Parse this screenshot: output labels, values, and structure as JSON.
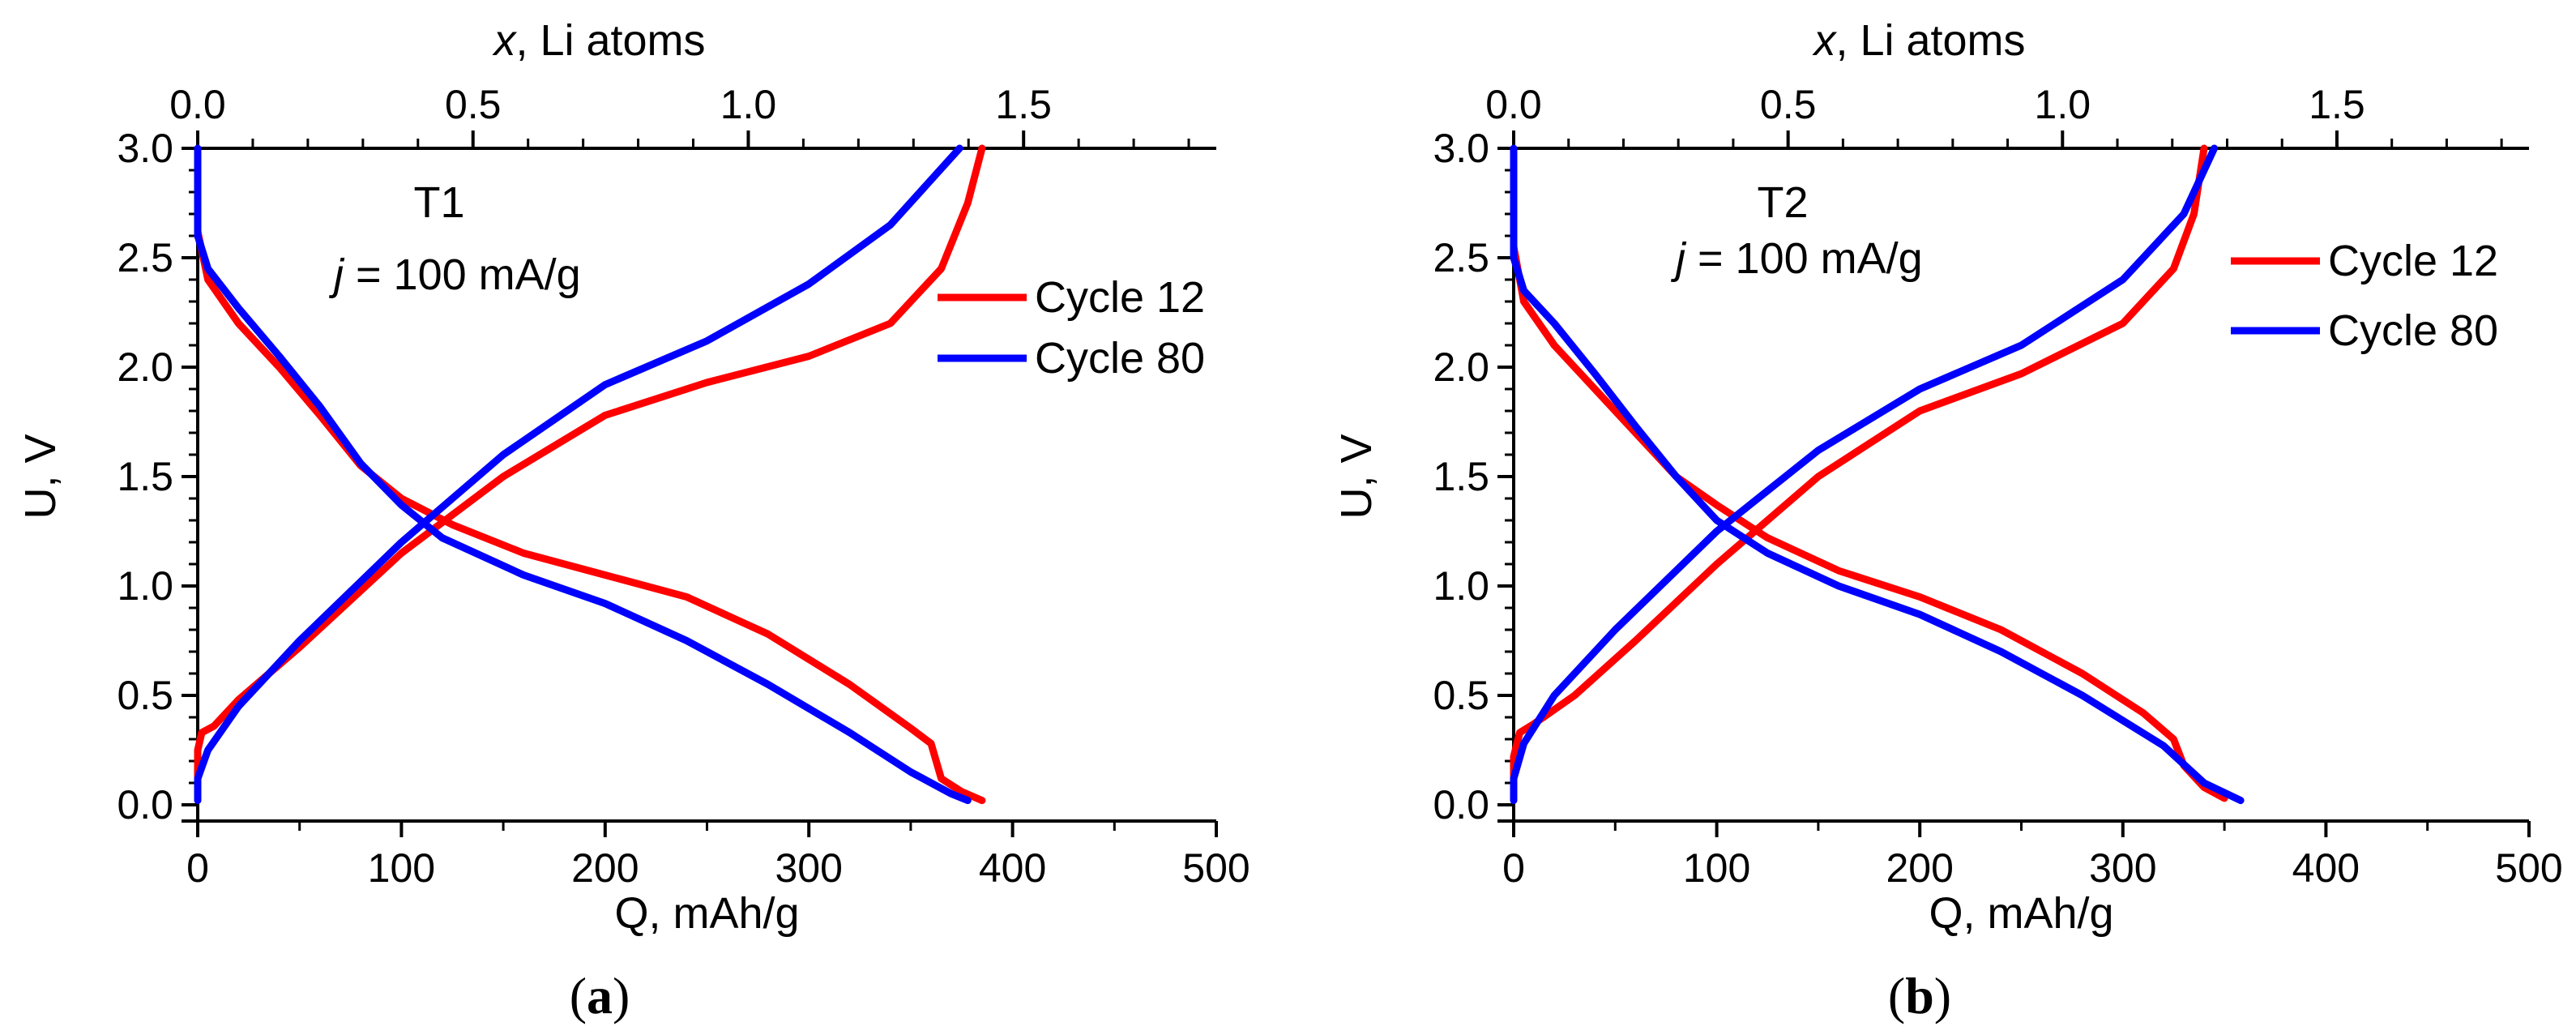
{
  "chart_data": [
    {
      "type": "line",
      "panel_label": "a",
      "annotation": "T1",
      "current_density": {
        "italic": "j",
        "text": " = 100 mA/g"
      },
      "xlabel": "Q, mAh/g",
      "ylabel": "U, V",
      "top_xlabel": {
        "italic": "x",
        "text": ", Li atoms"
      },
      "xlim": [
        0,
        500
      ],
      "ylim": [
        0,
        3.0
      ],
      "top_xlim": [
        0,
        1.85
      ],
      "xticks": [
        "0",
        "100",
        "200",
        "300",
        "400",
        "500"
      ],
      "yticks": [
        "0.0",
        "0.5",
        "1.0",
        "1.5",
        "2.0",
        "2.5",
        "3.0"
      ],
      "top_xticks": [
        "0.0",
        "0.5",
        "1.0",
        "1.5"
      ],
      "legend_position": "right",
      "series": [
        {
          "name": "Cycle 12",
          "color": "#ff0000",
          "segments": [
            [
              [
                0,
                2.62
              ],
              [
                5,
                2.4
              ],
              [
                20,
                2.2
              ],
              [
                40,
                2.0
              ],
              [
                60,
                1.78
              ],
              [
                80,
                1.55
              ],
              [
                100,
                1.4
              ],
              [
                125,
                1.28
              ],
              [
                160,
                1.15
              ],
              [
                200,
                1.05
              ],
              [
                240,
                0.95
              ],
              [
                280,
                0.78
              ],
              [
                320,
                0.55
              ],
              [
                350,
                0.35
              ],
              [
                360,
                0.28
              ],
              [
                365,
                0.12
              ],
              [
                375,
                0.06
              ],
              [
                385,
                0.02
              ]
            ],
            [
              [
                0,
                0.1
              ],
              [
                0,
                0.25
              ],
              [
                2,
                0.33
              ],
              [
                8,
                0.36
              ],
              [
                20,
                0.48
              ],
              [
                50,
                0.72
              ],
              [
                100,
                1.15
              ],
              [
                150,
                1.5
              ],
              [
                200,
                1.78
              ],
              [
                250,
                1.93
              ],
              [
                300,
                2.05
              ],
              [
                340,
                2.2
              ],
              [
                365,
                2.45
              ],
              [
                378,
                2.75
              ],
              [
                385,
                3.0
              ]
            ]
          ]
        },
        {
          "name": "Cycle 80",
          "color": "#0000ff",
          "segments": [
            [
              [
                0,
                3.0
              ],
              [
                0,
                2.6
              ],
              [
                5,
                2.45
              ],
              [
                20,
                2.27
              ],
              [
                40,
                2.05
              ],
              [
                60,
                1.82
              ],
              [
                80,
                1.56
              ],
              [
                100,
                1.37
              ],
              [
                120,
                1.22
              ],
              [
                160,
                1.05
              ],
              [
                200,
                0.92
              ],
              [
                240,
                0.75
              ],
              [
                280,
                0.55
              ],
              [
                320,
                0.33
              ],
              [
                350,
                0.15
              ],
              [
                370,
                0.05
              ],
              [
                378,
                0.02
              ]
            ],
            [
              [
                0,
                0.02
              ],
              [
                0,
                0.12
              ],
              [
                5,
                0.25
              ],
              [
                20,
                0.45
              ],
              [
                50,
                0.75
              ],
              [
                100,
                1.2
              ],
              [
                150,
                1.6
              ],
              [
                200,
                1.92
              ],
              [
                250,
                2.12
              ],
              [
                300,
                2.38
              ],
              [
                340,
                2.65
              ],
              [
                374,
                3.0
              ]
            ]
          ]
        }
      ]
    },
    {
      "type": "line",
      "panel_label": "b",
      "annotation": "T2",
      "current_density": {
        "italic": "j",
        "text": " = 100 mA/g"
      },
      "xlabel": "Q, mAh/g",
      "ylabel": "U, V",
      "top_xlabel": {
        "italic": "x",
        "text": ", Li atoms"
      },
      "xlim": [
        0,
        500
      ],
      "ylim": [
        0,
        3.0
      ],
      "top_xlim": [
        0,
        1.85
      ],
      "xticks": [
        "0",
        "100",
        "200",
        "300",
        "400",
        "500"
      ],
      "yticks": [
        "0.0",
        "0.5",
        "1.0",
        "1.5",
        "2.0",
        "2.5",
        "3.0"
      ],
      "top_xticks": [
        "0.0",
        "0.5",
        "1.0",
        "1.5"
      ],
      "legend_position": "right",
      "series": [
        {
          "name": "Cycle 12",
          "color": "#ff0000",
          "segments": [
            [
              [
                0,
                2.55
              ],
              [
                5,
                2.3
              ],
              [
                20,
                2.1
              ],
              [
                40,
                1.9
              ],
              [
                60,
                1.7
              ],
              [
                80,
                1.5
              ],
              [
                100,
                1.37
              ],
              [
                125,
                1.22
              ],
              [
                160,
                1.07
              ],
              [
                200,
                0.95
              ],
              [
                240,
                0.8
              ],
              [
                280,
                0.6
              ],
              [
                310,
                0.42
              ],
              [
                325,
                0.3
              ],
              [
                330,
                0.18
              ],
              [
                340,
                0.08
              ],
              [
                350,
                0.03
              ]
            ],
            [
              [
                0,
                0.05
              ],
              [
                0,
                0.22
              ],
              [
                3,
                0.33
              ],
              [
                10,
                0.37
              ],
              [
                30,
                0.5
              ],
              [
                60,
                0.75
              ],
              [
                100,
                1.1
              ],
              [
                150,
                1.5
              ],
              [
                200,
                1.8
              ],
              [
                250,
                1.97
              ],
              [
                300,
                2.2
              ],
              [
                325,
                2.45
              ],
              [
                335,
                2.7
              ],
              [
                340,
                3.0
              ]
            ]
          ]
        },
        {
          "name": "Cycle 80",
          "color": "#0000ff",
          "segments": [
            [
              [
                0,
                3.0
              ],
              [
                0,
                2.5
              ],
              [
                5,
                2.35
              ],
              [
                20,
                2.2
              ],
              [
                40,
                1.97
              ],
              [
                60,
                1.73
              ],
              [
                80,
                1.5
              ],
              [
                100,
                1.3
              ],
              [
                125,
                1.15
              ],
              [
                160,
                1.0
              ],
              [
                200,
                0.87
              ],
              [
                240,
                0.7
              ],
              [
                280,
                0.5
              ],
              [
                320,
                0.27
              ],
              [
                340,
                0.1
              ],
              [
                358,
                0.02
              ]
            ],
            [
              [
                0,
                0.02
              ],
              [
                0,
                0.12
              ],
              [
                5,
                0.28
              ],
              [
                20,
                0.5
              ],
              [
                50,
                0.8
              ],
              [
                100,
                1.25
              ],
              [
                150,
                1.62
              ],
              [
                200,
                1.9
              ],
              [
                250,
                2.1
              ],
              [
                300,
                2.4
              ],
              [
                330,
                2.7
              ],
              [
                345,
                3.0
              ]
            ]
          ]
        }
      ]
    }
  ]
}
